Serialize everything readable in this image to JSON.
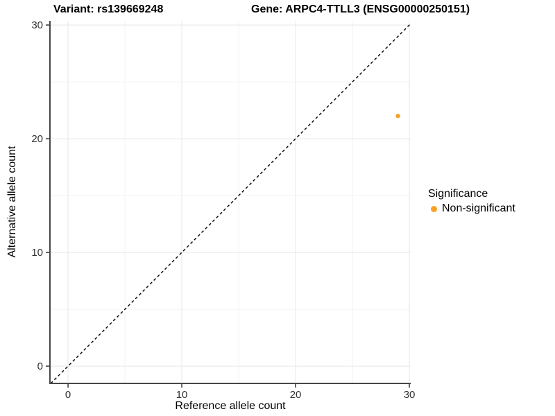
{
  "chart_data": {
    "type": "scatter",
    "titles": {
      "left": "Variant: rs139669248",
      "right": "Gene: ARPC4-TTLL3 (ENSG00000250151)"
    },
    "xlabel": "Reference allele count",
    "ylabel": "Alternative allele count",
    "xlim": [
      -1.59,
      30.12
    ],
    "ylim": [
      -1.52,
      30.37
    ],
    "x_ticks": [
      0,
      10,
      20,
      30
    ],
    "y_ticks": [
      0,
      10,
      20,
      30
    ],
    "x_minor_ticks": [
      5,
      15,
      25
    ],
    "y_minor_ticks": [
      5,
      15,
      25
    ],
    "grid": {
      "major_color": "#e7e7e7",
      "minor_color": "#f3f3f3",
      "background": "#ffffff"
    },
    "identity_line": {
      "type": "y=x",
      "style": "dashed",
      "color": "#000000"
    },
    "series": [
      {
        "name": "Non-significant",
        "color": "#F8A023",
        "points": [
          {
            "x": 29,
            "y": 22
          }
        ]
      }
    ],
    "legend": {
      "title": "Significance",
      "position": "right",
      "items": [
        {
          "label": "Non-significant",
          "color": "#F8A023"
        }
      ]
    },
    "axis_style": {
      "line_color": "#474747",
      "tick_color": "#333333",
      "tick_label_color": "#303030"
    }
  }
}
